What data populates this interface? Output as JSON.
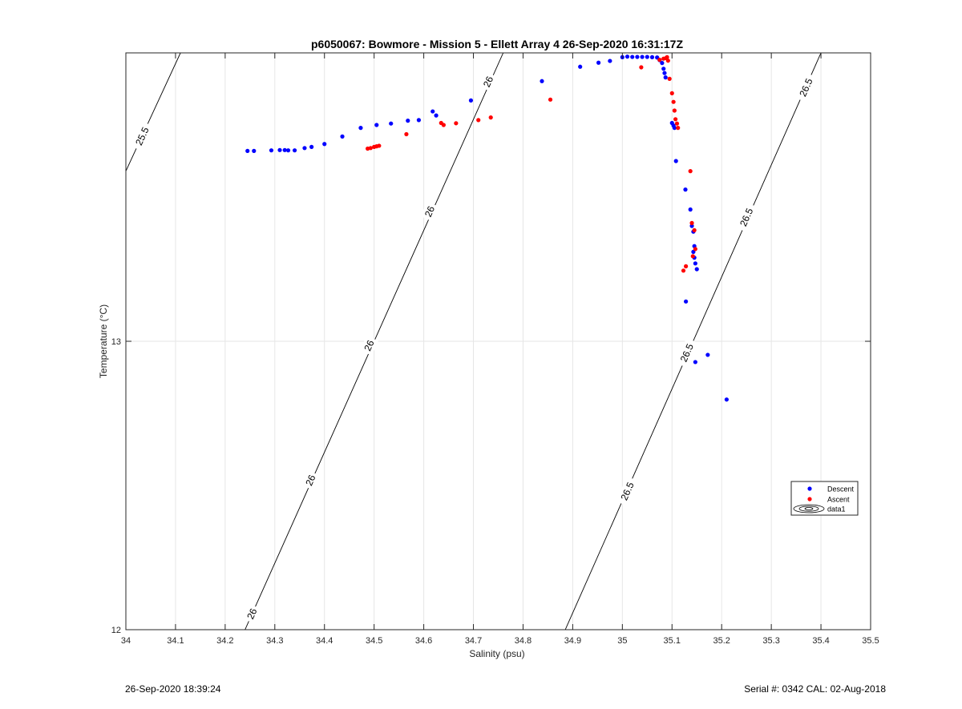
{
  "chart_data": {
    "type": "scatter",
    "title": "p6050067: Bowmore - Mission 5 - Ellett Array 4 26-Sep-2020 16:31:17Z",
    "xlabel": "Salinity (psu)",
    "ylabel": "Temperature (°C)",
    "xlim": [
      34,
      35.5
    ],
    "ylim": [
      12,
      14
    ],
    "x_ticks": [
      "34",
      "34.1",
      "34.2",
      "34.3",
      "34.4",
      "34.5",
      "34.6",
      "34.7",
      "34.8",
      "34.9",
      "35",
      "35.1",
      "35.2",
      "35.3",
      "35.4",
      "35.5"
    ],
    "y_ticks": [
      "12",
      "13"
    ],
    "grid": true,
    "legend_placement": "lower-right",
    "legend": [
      "Descent",
      "Ascent",
      "data1"
    ],
    "series": [
      {
        "name": "Descent",
        "color": "#0000ff",
        "points": [
          [
            34.245,
            13.66
          ],
          [
            34.258,
            13.66
          ],
          [
            34.293,
            13.662
          ],
          [
            34.31,
            13.663
          ],
          [
            34.32,
            13.663
          ],
          [
            34.327,
            13.662
          ],
          [
            34.34,
            13.662
          ],
          [
            34.36,
            13.67
          ],
          [
            34.374,
            13.674
          ],
          [
            34.4,
            13.684
          ],
          [
            34.436,
            13.71
          ],
          [
            34.473,
            13.74
          ],
          [
            34.505,
            13.75
          ],
          [
            34.534,
            13.755
          ],
          [
            34.568,
            13.765
          ],
          [
            34.59,
            13.767
          ],
          [
            34.618,
            13.797
          ],
          [
            34.625,
            13.783
          ],
          [
            34.695,
            13.835
          ],
          [
            34.838,
            13.902
          ],
          [
            34.915,
            13.952
          ],
          [
            34.952,
            13.966
          ],
          [
            34.975,
            13.972
          ],
          [
            35.0,
            13.985
          ],
          [
            35.01,
            13.987
          ],
          [
            35.02,
            13.986
          ],
          [
            35.03,
            13.986
          ],
          [
            35.04,
            13.986
          ],
          [
            35.05,
            13.986
          ],
          [
            35.06,
            13.985
          ],
          [
            35.07,
            13.984
          ],
          [
            35.075,
            13.975
          ],
          [
            35.08,
            13.965
          ],
          [
            35.083,
            13.945
          ],
          [
            35.085,
            13.93
          ],
          [
            35.087,
            13.915
          ],
          [
            35.1,
            13.757
          ],
          [
            35.103,
            13.748
          ],
          [
            35.105,
            13.74
          ],
          [
            35.108,
            13.625
          ],
          [
            35.127,
            13.526
          ],
          [
            35.137,
            13.457
          ],
          [
            35.14,
            13.4
          ],
          [
            35.143,
            13.38
          ],
          [
            35.145,
            13.33
          ],
          [
            35.143,
            13.31
          ],
          [
            35.145,
            13.29
          ],
          [
            35.147,
            13.27
          ],
          [
            35.15,
            13.25
          ],
          [
            35.128,
            13.138
          ],
          [
            35.172,
            12.953
          ],
          [
            35.147,
            12.928
          ],
          [
            35.21,
            12.798
          ]
        ]
      },
      {
        "name": "Ascent",
        "color": "#ff0000",
        "points": [
          [
            34.487,
            13.668
          ],
          [
            34.493,
            13.67
          ],
          [
            34.5,
            13.674
          ],
          [
            34.505,
            13.676
          ],
          [
            34.51,
            13.678
          ],
          [
            34.565,
            13.718
          ],
          [
            34.635,
            13.757
          ],
          [
            34.64,
            13.75
          ],
          [
            34.665,
            13.756
          ],
          [
            34.71,
            13.767
          ],
          [
            34.735,
            13.776
          ],
          [
            34.855,
            13.838
          ],
          [
            35.038,
            13.95
          ],
          [
            35.075,
            13.976
          ],
          [
            35.083,
            13.98
          ],
          [
            35.088,
            13.982
          ],
          [
            35.09,
            13.985
          ],
          [
            35.092,
            13.973
          ],
          [
            35.095,
            13.91
          ],
          [
            35.1,
            13.86
          ],
          [
            35.103,
            13.83
          ],
          [
            35.105,
            13.8
          ],
          [
            35.107,
            13.77
          ],
          [
            35.11,
            13.755
          ],
          [
            35.112,
            13.74
          ],
          [
            35.137,
            13.59
          ],
          [
            35.14,
            13.41
          ],
          [
            35.145,
            13.385
          ],
          [
            35.147,
            13.32
          ],
          [
            35.142,
            13.295
          ],
          [
            35.128,
            13.26
          ],
          [
            35.123,
            13.245
          ]
        ]
      }
    ],
    "isopycnals": [
      {
        "label": "25.5",
        "line": [
          [
            34.0,
            13.59
          ],
          [
            34.11,
            14.0
          ]
        ],
        "labels_at": [
          [
            34.033,
            13.711
          ]
        ]
      },
      {
        "label": "26",
        "line": [
          [
            34.24,
            12.0
          ],
          [
            34.76,
            14.0
          ]
        ],
        "labels_at": [
          [
            34.254,
            12.055
          ],
          [
            34.372,
            12.518
          ],
          [
            34.49,
            12.985
          ],
          [
            34.612,
            13.45
          ],
          [
            34.73,
            13.9
          ]
        ]
      },
      {
        "label": "26.5",
        "line": [
          [
            34.885,
            12.0
          ],
          [
            35.4,
            14.0
          ]
        ],
        "labels_at": [
          [
            35.01,
            12.48
          ],
          [
            35.13,
            12.96
          ],
          [
            35.25,
            13.43
          ],
          [
            35.37,
            13.88
          ]
        ]
      }
    ]
  },
  "footer": {
    "timestamp": "26-Sep-2020 18:39:24",
    "serial_cal": "Serial #: 0342  CAL: 02-Aug-2018"
  }
}
